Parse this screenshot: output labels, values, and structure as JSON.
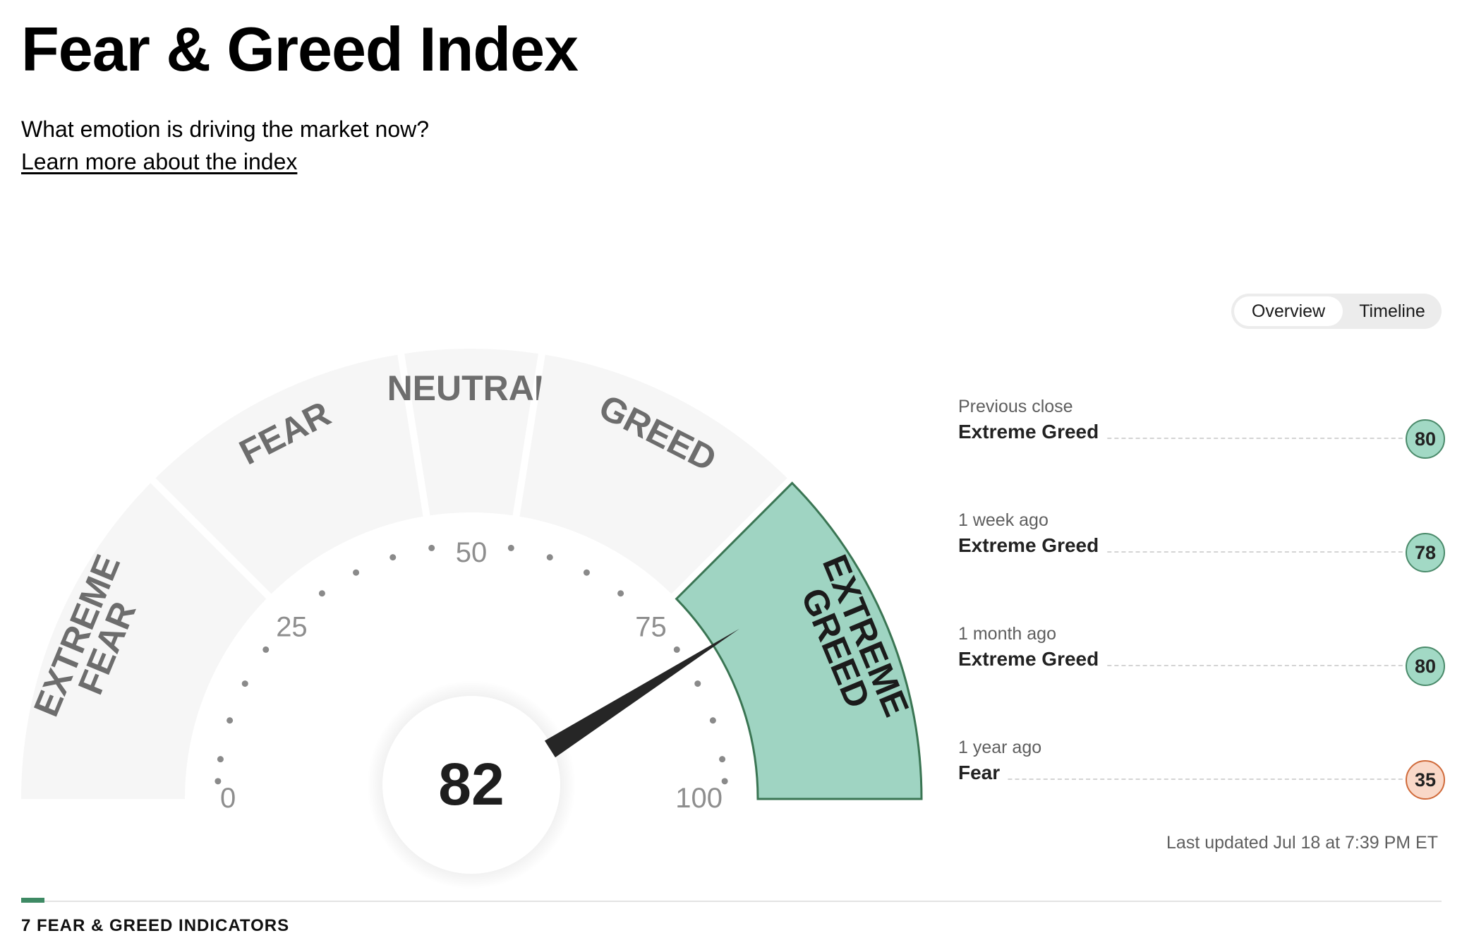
{
  "header": {
    "title": "Fear & Greed Index",
    "subtitle": "What emotion is driving the market now?",
    "learn_more": "Learn more about the index"
  },
  "view_toggle": {
    "options": [
      "Overview",
      "Timeline"
    ],
    "selected": "Overview"
  },
  "gauge": {
    "score": 82,
    "min": 0,
    "max": 100,
    "tick_labels": [
      "0",
      "25",
      "50",
      "75",
      "100"
    ],
    "segments": [
      {
        "lines": [
          "EXTREME",
          "FEAR"
        ],
        "from": 0,
        "to": 25
      },
      {
        "lines": [
          "FEAR"
        ],
        "from": 25,
        "to": 45
      },
      {
        "lines": [
          "NEUTRAL"
        ],
        "from": 45,
        "to": 55
      },
      {
        "lines": [
          "GREED"
        ],
        "from": 55,
        "to": 75
      },
      {
        "lines": [
          "EXTREME",
          "GREED"
        ],
        "from": 75,
        "to": 100
      }
    ],
    "active_segment": 4,
    "colors": {
      "inactive_fill": "#f6f6f6",
      "active_fill": "#9fd4c2",
      "active_stroke": "#3a7553",
      "needle": "#262626"
    }
  },
  "history": [
    {
      "period": "Previous close",
      "rating": "Extreme Greed",
      "value": "80",
      "tone": "greed"
    },
    {
      "period": "1 week ago",
      "rating": "Extreme Greed",
      "value": "78",
      "tone": "greed"
    },
    {
      "period": "1 month ago",
      "rating": "Extreme Greed",
      "value": "80",
      "tone": "greed"
    },
    {
      "period": "1 year ago",
      "rating": "Fear",
      "value": "35",
      "tone": "fear"
    }
  ],
  "last_updated": "Last updated Jul 18 at 7:39 PM ET",
  "indicators_section": {
    "title": "7 FEAR & GREED INDICATORS"
  }
}
